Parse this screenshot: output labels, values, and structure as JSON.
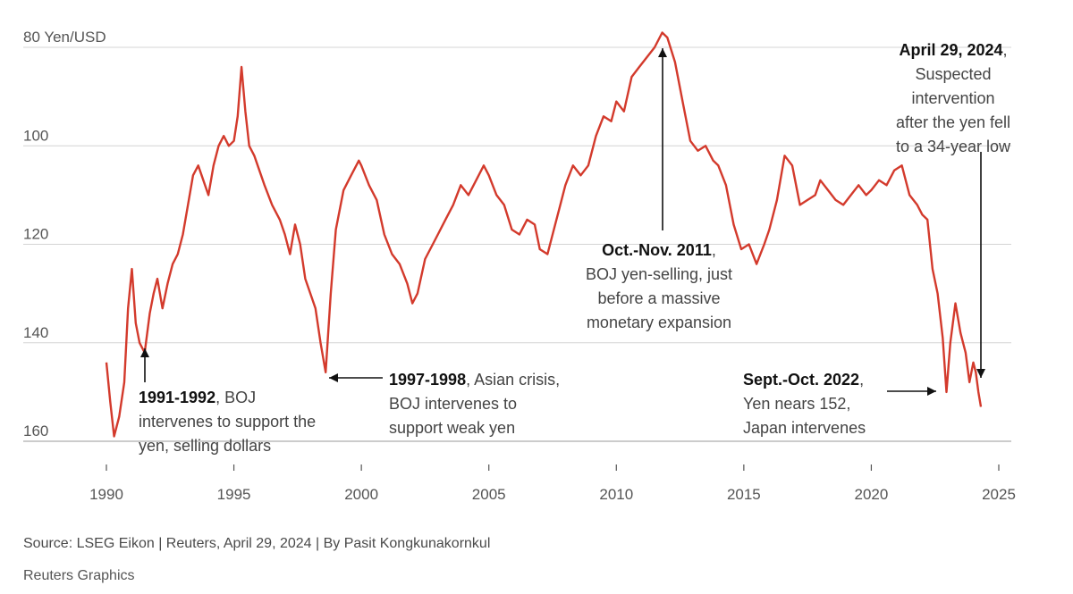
{
  "chart_data": {
    "type": "line",
    "title": "",
    "xlabel": "",
    "ylabel": "Yen/USD",
    "y_unit_label": "80 Yen/USD",
    "y_inverted": true,
    "ylim": [
      80,
      160
    ],
    "xlim": [
      1990,
      2025
    ],
    "y_ticks": [
      "100",
      "120",
      "140",
      "160"
    ],
    "x_ticks": [
      "1990",
      "1995",
      "2000",
      "2005",
      "2010",
      "2015",
      "2020",
      "2025"
    ],
    "grid": true,
    "series": [
      {
        "color": "#d33a2c",
        "x": [
          1990.0,
          1990.15,
          1990.3,
          1990.5,
          1990.7,
          1990.85,
          1991.0,
          1991.15,
          1991.3,
          1991.5,
          1991.7,
          1991.85,
          1992.0,
          1992.2,
          1992.4,
          1992.6,
          1992.8,
          1993.0,
          1993.2,
          1993.4,
          1993.6,
          1993.8,
          1994.0,
          1994.2,
          1994.4,
          1994.6,
          1994.8,
          1995.0,
          1995.15,
          1995.3,
          1995.45,
          1995.6,
          1995.8,
          1996.0,
          1996.2,
          1996.5,
          1996.8,
          1997.0,
          1997.2,
          1997.4,
          1997.6,
          1997.8,
          1998.0,
          1998.2,
          1998.4,
          1998.6,
          1998.8,
          1999.0,
          1999.3,
          1999.6,
          1999.9,
          2000.0,
          2000.3,
          2000.6,
          2000.9,
          2001.2,
          2001.5,
          2001.8,
          2002.0,
          2002.2,
          2002.5,
          2002.8,
          2003.0,
          2003.3,
          2003.6,
          2003.9,
          2004.2,
          2004.5,
          2004.8,
          2005.0,
          2005.3,
          2005.6,
          2005.9,
          2006.2,
          2006.5,
          2006.8,
          2007.0,
          2007.3,
          2007.5,
          2007.8,
          2008.0,
          2008.3,
          2008.6,
          2008.9,
          2009.2,
          2009.5,
          2009.8,
          2010.0,
          2010.3,
          2010.6,
          2010.9,
          2011.2,
          2011.5,
          2011.8,
          2012.0,
          2012.3,
          2012.6,
          2012.9,
          2013.2,
          2013.5,
          2013.8,
          2014.0,
          2014.3,
          2014.6,
          2014.9,
          2015.2,
          2015.5,
          2015.8,
          2016.0,
          2016.3,
          2016.6,
          2016.9,
          2017.2,
          2017.5,
          2017.8,
          2018.0,
          2018.3,
          2018.6,
          2018.9,
          2019.2,
          2019.5,
          2019.8,
          2020.0,
          2020.3,
          2020.6,
          2020.9,
          2021.2,
          2021.5,
          2021.8,
          2022.0,
          2022.2,
          2022.4,
          2022.6,
          2022.8,
          2022.95,
          2023.1,
          2023.3,
          2023.5,
          2023.7,
          2023.85,
          2024.0,
          2024.1,
          2024.2,
          2024.3
        ],
        "y": [
          144,
          152,
          159,
          155,
          148,
          133,
          125,
          136,
          140,
          142,
          134,
          130,
          127,
          133,
          128,
          124,
          122,
          118,
          112,
          106,
          104,
          107,
          110,
          104,
          100,
          98,
          100,
          99,
          94,
          84,
          93,
          100,
          102,
          105,
          108,
          112,
          115,
          118,
          122,
          116,
          120,
          127,
          130,
          133,
          140,
          146,
          130,
          117,
          109,
          106,
          103,
          104,
          108,
          111,
          118,
          122,
          124,
          128,
          132,
          130,
          123,
          120,
          118,
          115,
          112,
          108,
          110,
          107,
          104,
          106,
          110,
          112,
          117,
          118,
          115,
          116,
          121,
          122,
          118,
          112,
          108,
          104,
          106,
          104,
          98,
          94,
          95,
          91,
          93,
          86,
          84,
          82,
          80,
          77,
          78,
          83,
          91,
          99,
          101,
          100,
          103,
          104,
          108,
          116,
          121,
          120,
          124,
          120,
          117,
          111,
          102,
          104,
          112,
          111,
          110,
          107,
          109,
          111,
          112,
          110,
          108,
          110,
          109,
          107,
          108,
          105,
          104,
          110,
          112,
          114,
          115,
          125,
          130,
          139,
          150,
          140,
          132,
          138,
          142,
          148,
          144,
          146,
          150,
          153
        ]
      }
    ],
    "annotations": [
      {
        "bold": "1991-1992",
        "lines": [
          "1991-1992, BOJ",
          "intervenes to support the",
          "yen, selling dollars"
        ]
      },
      {
        "bold": "1997-1998",
        "lines": [
          "1997-1998, Asian crisis,",
          "BOJ intervenes to",
          "support weak yen"
        ]
      },
      {
        "bold": "Oct.-Nov. 2011",
        "lines": [
          "Oct.-Nov. 2011,",
          "BOJ yen-selling, just",
          "before a massive",
          "monetary expansion"
        ]
      },
      {
        "bold": "April 29, 2024",
        "lines": [
          "April 29, 2024,",
          "Suspected",
          "intervention",
          "after the yen fell",
          "to a 34-year low"
        ]
      },
      {
        "bold": "Sept.-Oct. 2022",
        "lines": [
          "Sept.-Oct. 2022,",
          "Yen nears 152,",
          "Japan intervenes"
        ]
      }
    ]
  },
  "footer": {
    "source": "Source: LSEG Eikon | Reuters, April 29, 2024 | By Pasit Kongkunakornkul",
    "credit": "Reuters Graphics"
  }
}
